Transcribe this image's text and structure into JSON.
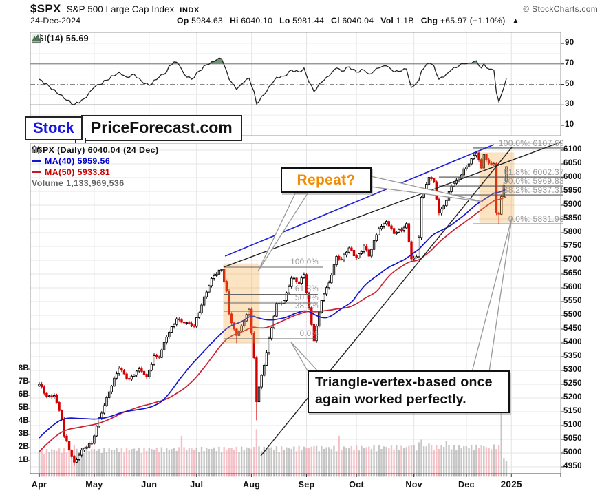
{
  "header": {
    "symbol": "$SPX",
    "name": "S&P 500 Large Cap Index",
    "exchange": "INDX",
    "credit": "© StockCharts.com",
    "date": "24-Dec-2024",
    "quote": [
      {
        "k": "Op",
        "v": "5984.63"
      },
      {
        "k": "Hi",
        "v": "6040.10"
      },
      {
        "k": "Lo",
        "v": "5981.44"
      },
      {
        "k": "Cl",
        "v": "6040.04"
      },
      {
        "k": "Vol",
        "v": "1.1B"
      },
      {
        "k": "Chg",
        "v": "+65.97 (+1.10%)"
      }
    ],
    "arrow": "▲"
  },
  "rsi_panel": {
    "legend": "RSI(14) 55.69"
  },
  "logo": {
    "part1": "Stock",
    "part2": "PriceForecast.com"
  },
  "main_legend": {
    "main": "$SPX (Daily) 6040.04 (24 Dec)",
    "ma40": "MA(40) 5959.56",
    "ma50": "MA(50) 5933.81",
    "volume": "Volume 1,133,969,536"
  },
  "annotations": {
    "repeat": "Repeat?",
    "triangle_line1": "Triangle-vertex-based once",
    "triangle_line2": "again worked perfectly."
  },
  "colors": {
    "up_candle": "#000000",
    "down_candle": "#d40000",
    "ma40": "#1414cc",
    "ma50": "#cc2233",
    "vol_up": "#a8a8a8",
    "vol_down": "#f09fa8",
    "fib_label": "#999999",
    "highlight_zone": "#f6a638",
    "rsi_fill": "#5f8c68",
    "repeat_text": "#f28b00"
  },
  "chart_data": {
    "type": "candlestick",
    "title": "$SPX (Daily) 6040.04 (24 Dec)",
    "price_axis": {
      "max": 6100,
      "min": 4950,
      "step": 50
    },
    "volume_axis_billions": [
      8,
      7,
      6,
      5,
      4,
      3,
      2,
      1
    ],
    "rsi_axis": {
      "ticks": [
        90,
        70,
        50,
        30,
        10
      ],
      "overbought": 70,
      "midline": 50,
      "oversold": 30
    },
    "x_axis": {
      "months": [
        {
          "label": "Apr",
          "t": 0
        },
        {
          "label": "May",
          "t": 22
        },
        {
          "label": "Jun",
          "t": 44
        },
        {
          "label": "Jul",
          "t": 63
        },
        {
          "label": "Aug",
          "t": 85
        },
        {
          "label": "Sep",
          "t": 107
        },
        {
          "label": "Oct",
          "t": 127
        },
        {
          "label": "Nov",
          "t": 150
        },
        {
          "label": "Dec",
          "t": 171
        }
      ],
      "year": {
        "label": "2025",
        "t": 189
      }
    },
    "candle_anchors": [
      {
        "t": 0,
        "c": 5250
      },
      {
        "t": 3,
        "c": 5205
      },
      {
        "t": 6,
        "c": 5209
      },
      {
        "t": 9,
        "c": 5123
      },
      {
        "t": 10,
        "c": 5062
      },
      {
        "t": 14,
        "c": 4967,
        "lo": 4954
      },
      {
        "t": 17,
        "c": 5011
      },
      {
        "t": 21,
        "c": 5035
      },
      {
        "t": 24,
        "c": 5128
      },
      {
        "t": 28,
        "c": 5222
      },
      {
        "t": 32,
        "c": 5308
      },
      {
        "t": 36,
        "c": 5268
      },
      {
        "t": 40,
        "c": 5306
      },
      {
        "t": 43,
        "c": 5277
      },
      {
        "t": 46,
        "c": 5354
      },
      {
        "t": 48,
        "c": 5347
      },
      {
        "t": 51,
        "c": 5421
      },
      {
        "t": 55,
        "c": 5487
      },
      {
        "t": 58,
        "c": 5473
      },
      {
        "t": 62,
        "c": 5460
      },
      {
        "t": 66,
        "c": 5567
      },
      {
        "t": 69,
        "c": 5634
      },
      {
        "t": 73,
        "c": 5667,
        "hi": 5670
      },
      {
        "t": 75,
        "c": 5588
      },
      {
        "t": 76,
        "c": 5505
      },
      {
        "t": 79,
        "c": 5427,
        "lo": 5399
      },
      {
        "t": 82,
        "c": 5480
      },
      {
        "t": 84,
        "c": 5522
      },
      {
        "t": 86,
        "c": 5346
      },
      {
        "t": 87,
        "c": 5186,
        "lo": 5119
      },
      {
        "t": 88,
        "c": 5240
      },
      {
        "t": 90,
        "c": 5319
      },
      {
        "t": 93,
        "c": 5455
      },
      {
        "t": 95,
        "c": 5543
      },
      {
        "t": 98,
        "c": 5554
      },
      {
        "t": 101,
        "c": 5635
      },
      {
        "t": 104,
        "c": 5616
      },
      {
        "t": 106,
        "c": 5648
      },
      {
        "t": 108,
        "c": 5528
      },
      {
        "t": 110,
        "c": 5408,
        "lo": 5403
      },
      {
        "t": 113,
        "c": 5554
      },
      {
        "t": 116,
        "c": 5618
      },
      {
        "t": 119,
        "c": 5714
      },
      {
        "t": 121,
        "c": 5702
      },
      {
        "t": 124,
        "c": 5745
      },
      {
        "t": 127,
        "c": 5709
      },
      {
        "t": 130,
        "c": 5751
      },
      {
        "t": 132,
        "c": 5715
      },
      {
        "t": 136,
        "c": 5815
      },
      {
        "t": 139,
        "c": 5841
      },
      {
        "t": 142,
        "c": 5797
      },
      {
        "t": 145,
        "c": 5809
      },
      {
        "t": 147,
        "c": 5833
      },
      {
        "t": 149,
        "c": 5705
      },
      {
        "t": 151,
        "c": 5713
      },
      {
        "t": 152,
        "c": 5783
      },
      {
        "t": 153,
        "c": 5929
      },
      {
        "t": 156,
        "c": 6001
      },
      {
        "t": 158,
        "c": 5985
      },
      {
        "t": 160,
        "c": 5871
      },
      {
        "t": 163,
        "c": 5917
      },
      {
        "t": 165,
        "c": 5969
      },
      {
        "t": 168,
        "c": 5998
      },
      {
        "t": 170,
        "c": 6032
      },
      {
        "t": 172,
        "c": 6050
      },
      {
        "t": 175,
        "c": 6090
      },
      {
        "t": 177,
        "c": 6035
      },
      {
        "t": 178,
        "c": 6084
      },
      {
        "t": 180,
        "c": 6052
      },
      {
        "t": 182,
        "c": 6051
      },
      {
        "t": 183,
        "c": 5872
      },
      {
        "t": 184,
        "c": 5867,
        "lo": 5832
      },
      {
        "t": 185,
        "c": 5931
      },
      {
        "t": 186,
        "c": 5974
      },
      {
        "t": 187,
        "c": 6040,
        "o": 5985,
        "hi": 6040.1,
        "lo": 5981.4
      }
    ],
    "rsi_anchors": [
      [
        0,
        55
      ],
      [
        4,
        48
      ],
      [
        8,
        40
      ],
      [
        14,
        30
      ],
      [
        18,
        36
      ],
      [
        22,
        47
      ],
      [
        27,
        54
      ],
      [
        32,
        62
      ],
      [
        35,
        57
      ],
      [
        38,
        60
      ],
      [
        41,
        53
      ],
      [
        44,
        49
      ],
      [
        48,
        57
      ],
      [
        51,
        62
      ],
      [
        52,
        68
      ],
      [
        54,
        72
      ],
      [
        56,
        69
      ],
      [
        58,
        60
      ],
      [
        61,
        55
      ],
      [
        64,
        63
      ],
      [
        67,
        69
      ],
      [
        69,
        72
      ],
      [
        71,
        74
      ],
      [
        73,
        75
      ],
      [
        75,
        63
      ],
      [
        76,
        55
      ],
      [
        79,
        45
      ],
      [
        82,
        52
      ],
      [
        84,
        56
      ],
      [
        86,
        43
      ],
      [
        87,
        31
      ],
      [
        90,
        40
      ],
      [
        93,
        50
      ],
      [
        95,
        57
      ],
      [
        98,
        58
      ],
      [
        101,
        64
      ],
      [
        104,
        62
      ],
      [
        106,
        66
      ],
      [
        108,
        52
      ],
      [
        110,
        43
      ],
      [
        113,
        52
      ],
      [
        116,
        58
      ],
      [
        119,
        66
      ],
      [
        121,
        63
      ],
      [
        124,
        67
      ],
      [
        127,
        62
      ],
      [
        130,
        64
      ],
      [
        132,
        60
      ],
      [
        136,
        66
      ],
      [
        139,
        68
      ],
      [
        142,
        62
      ],
      [
        145,
        63
      ],
      [
        147,
        65
      ],
      [
        149,
        47
      ],
      [
        152,
        54
      ],
      [
        153,
        63
      ],
      [
        156,
        71
      ],
      [
        158,
        68
      ],
      [
        160,
        55
      ],
      [
        163,
        60
      ],
      [
        165,
        64
      ],
      [
        168,
        68
      ],
      [
        170,
        70
      ],
      [
        172,
        71
      ],
      [
        175,
        73
      ],
      [
        177,
        66
      ],
      [
        178,
        70
      ],
      [
        180,
        65
      ],
      [
        182,
        64
      ],
      [
        183,
        42
      ],
      [
        184,
        33
      ],
      [
        185,
        40
      ],
      [
        186,
        47
      ],
      [
        187,
        55.69
      ]
    ],
    "volume_spikes": {
      "3": 1.9,
      "14": 2.2,
      "24": 1.9,
      "57": 2.9,
      "63": 2.0,
      "87": 3.4,
      "110": 2.1,
      "120": 2.9,
      "149": 2.2,
      "152": 2.4,
      "153": 2.6,
      "156": 2.3,
      "163": 2.5,
      "171": 2.1,
      "180": 2.0,
      "185": 4.7,
      "186": 1.2,
      "187": 1.0
    },
    "trendlines": [
      {
        "name": "blue-resistance-line",
        "color": "#2222dd",
        "w": 1.7,
        "pts": [
          [
            74.4,
            5715
          ],
          [
            182,
            6120
          ]
        ]
      },
      {
        "name": "upper-triangle-line",
        "color": "#222222",
        "w": 1.4,
        "pts": [
          [
            73.8,
            5675
          ],
          [
            209,
            6130
          ]
        ]
      },
      {
        "name": "lower-triangle-line",
        "color": "#222222",
        "w": 1.4,
        "pts": [
          [
            88.7,
            4990
          ],
          [
            189.2,
            6110
          ]
        ]
      }
    ],
    "fib_left": {
      "labels": [
        "100.0%",
        "61.8%",
        "50.0%",
        "38.2%",
        "0.0%"
      ],
      "prices": [
        5675,
        5576,
        5545,
        5515,
        5415
      ],
      "t_range": [
        73.8,
        111.5
      ]
    },
    "fib_right": {
      "labels": [
        "100.0%: 6107.69",
        "61.8%: 6002.37",
        "50.0%: 5969.83",
        "38.2%: 5937.31",
        "0.0%: 5831.96"
      ],
      "prices": [
        6107.69,
        6002.37,
        5969.83,
        5937.31,
        5831.96
      ],
      "t_mid_start": 160,
      "t_hl_start": 173.5
    },
    "highlight_zones": [
      {
        "t": [
          73.8,
          88.1
        ],
        "p": [
          5400,
          5687
        ]
      },
      {
        "t": [
          176.3,
          190
        ],
        "p": [
          5837,
          6090
        ]
      }
    ]
  }
}
